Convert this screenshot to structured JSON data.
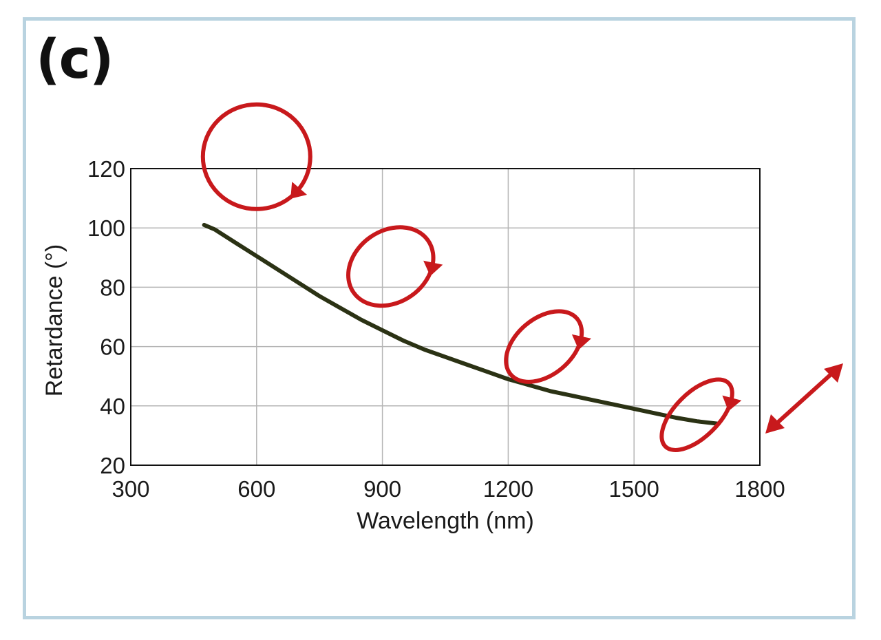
{
  "panel_label": "(c)",
  "chart_data": {
    "type": "line",
    "title": "",
    "xlabel": "Wavelength (nm)",
    "ylabel": "Retardance (°)",
    "xlim": [
      300,
      1800
    ],
    "ylim": [
      20,
      120
    ],
    "xticks": [
      300,
      600,
      900,
      1200,
      1500,
      1800
    ],
    "yticks": [
      20,
      40,
      60,
      80,
      100,
      120
    ],
    "grid": true,
    "series": [
      {
        "color": "#2b3214",
        "x": [
          475,
          500,
          550,
          600,
          650,
          700,
          750,
          800,
          850,
          900,
          950,
          1000,
          1050,
          1100,
          1150,
          1200,
          1250,
          1300,
          1350,
          1400,
          1450,
          1500,
          1550,
          1600,
          1650,
          1700
        ],
        "y": [
          101,
          99.5,
          95,
          90.5,
          86,
          81.5,
          77,
          73,
          69,
          65.5,
          62,
          59,
          56.5,
          54,
          51.5,
          49,
          47,
          45,
          43.5,
          42,
          40.5,
          39,
          37.5,
          36,
          34.8,
          34
        ]
      }
    ],
    "polarization_annotations": {
      "color": "#c8191c",
      "markers": [
        {
          "shape": "circle",
          "handedness": "right",
          "x": 600,
          "y": 124
        },
        {
          "shape": "ellipse",
          "handedness": "right",
          "x": 920,
          "y": 87
        },
        {
          "shape": "ellipse",
          "handedness": "right",
          "x": 1285,
          "y": 60
        },
        {
          "shape": "ellipse",
          "handedness": "right",
          "x": 1650,
          "y": 37
        },
        {
          "shape": "linear",
          "x": 1890,
          "y": 35
        }
      ]
    }
  }
}
